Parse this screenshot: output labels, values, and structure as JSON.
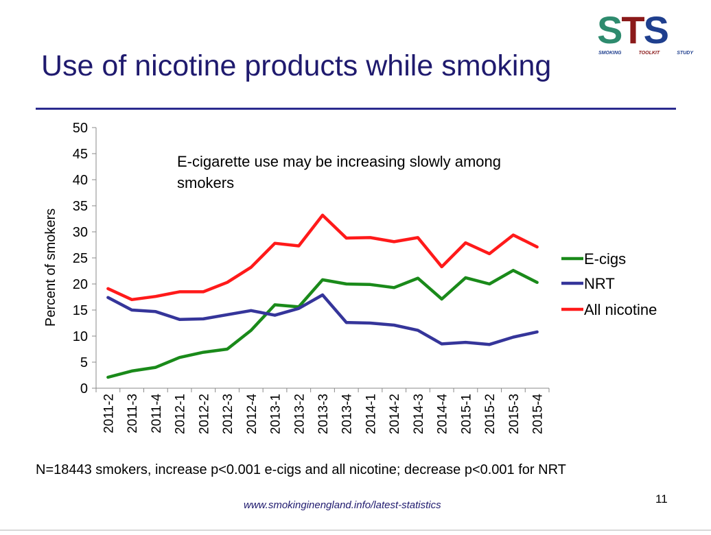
{
  "slide": {
    "title": "Use of nicotine products while smoking",
    "footnote": "N=18443 smokers, increase p<0.001 e-cigs and all nicotine; decrease p<0.001 for NRT",
    "url": "www.smokinginengland.info/latest-statistics",
    "page_number": "11"
  },
  "logo": {
    "letters": [
      "S",
      "T",
      "S"
    ],
    "words": [
      "SMOKING",
      "TOOLKIT",
      "STUDY"
    ]
  },
  "chart_data": {
    "type": "line",
    "title": "",
    "annotation": "E-cigarette use may be increasing slowly among smokers",
    "annotation_lines": [
      "E-cigarette use may be increasing slowly among",
      "smokers"
    ],
    "xlabel": "",
    "ylabel": "Percent of smokers",
    "ylim": [
      0,
      50
    ],
    "yticks": [
      0,
      5,
      10,
      15,
      20,
      25,
      30,
      35,
      40,
      45,
      50
    ],
    "grid": false,
    "legend_position": "right",
    "categories": [
      "2011-2",
      "2011-3",
      "2011-4",
      "2012-1",
      "2012-2",
      "2012-3",
      "2012-4",
      "2013-1",
      "2013-2",
      "2013-3",
      "2013-4",
      "2014-1",
      "2014-2",
      "2014-3",
      "2014-4",
      "2015-1",
      "2015-2",
      "2015-3",
      "2015-4"
    ],
    "series": [
      {
        "name": "E-cigs",
        "color": "#1a8a1a",
        "values": [
          2.1,
          3.3,
          4.0,
          5.9,
          6.9,
          7.5,
          11.1,
          16.0,
          15.6,
          20.8,
          20.0,
          19.9,
          19.3,
          21.1,
          17.1,
          21.2,
          20.0,
          22.6,
          20.3
        ]
      },
      {
        "name": "NRT",
        "color": "#35359a",
        "values": [
          17.4,
          15.0,
          14.7,
          13.2,
          13.3,
          14.1,
          14.9,
          14.0,
          15.3,
          17.9,
          12.6,
          12.5,
          12.1,
          11.1,
          8.5,
          8.8,
          8.4,
          9.8,
          10.8
        ]
      },
      {
        "name": "All nicotine",
        "color": "#ff1a1a",
        "values": [
          19.1,
          17.0,
          17.6,
          18.5,
          18.5,
          20.3,
          23.2,
          27.8,
          27.3,
          33.2,
          28.8,
          28.9,
          28.1,
          28.9,
          23.3,
          27.9,
          25.8,
          29.4,
          27.1
        ]
      }
    ]
  }
}
